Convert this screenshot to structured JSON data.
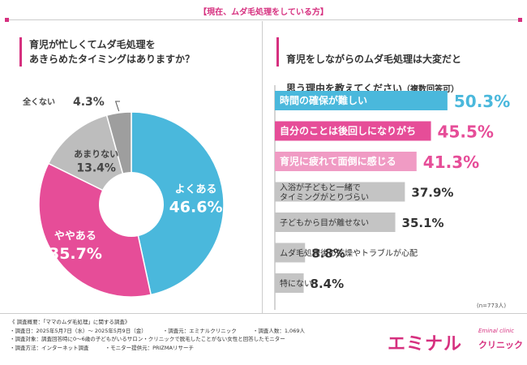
{
  "header": {
    "title": "【現在、ムダ毛処理をしている方】"
  },
  "left": {
    "question": "育児が忙しくてムダ毛処理を\nあきらめたタイミングはありますか？"
  },
  "right": {
    "question_line1": "育児をしながらのムダ毛処理は大変だと",
    "question_line2": "思う理由を教えてください",
    "question_suffix": "（複数回答可）",
    "n_note": "(n=773人)"
  },
  "chart_data": [
    {
      "type": "pie",
      "title": "育児が忙しくてムダ毛処理をあきらめたタイミングはありますか？",
      "slices": [
        {
          "label": "よくある",
          "value": 46.6,
          "value_text": "46.6%",
          "color": "#4ab8dc"
        },
        {
          "label": "ややある",
          "value": 35.7,
          "value_text": "35.7%",
          "color": "#e64d98"
        },
        {
          "label": "あまりない",
          "value": 13.4,
          "value_text": "13.4%",
          "color": "#bdbdbd"
        },
        {
          "label": "全くない",
          "value": 4.3,
          "value_text": "4.3%",
          "color": "#9e9e9e"
        }
      ]
    },
    {
      "type": "bar",
      "orientation": "horizontal",
      "title": "育児をしながらのムダ毛処理は大変だと思う理由を教えてください（複数回答可）",
      "xlim": [
        0,
        100
      ],
      "items": [
        {
          "label": "時間の確保が難しい",
          "value": 50.3,
          "value_text": "50.3%",
          "color": "#4ab8dc",
          "text_color": "#ffffff",
          "value_color": "#4ab8dc"
        },
        {
          "label": "自分のことは後回しになりがち",
          "value": 45.5,
          "value_text": "45.5%",
          "color": "#e64d98",
          "text_color": "#ffffff",
          "value_color": "#e64d98"
        },
        {
          "label": "育児に疲れて面倒に感じる",
          "value": 41.3,
          "value_text": "41.3%",
          "color": "#f09bc4",
          "text_color": "#ffffff",
          "value_color": "#e64d98"
        },
        {
          "label": "入浴が子どもと一緒で\nタイミングがとりづらい",
          "value": 37.9,
          "value_text": "37.9%",
          "color": "#c4c4c4",
          "text_color": "#333333",
          "value_color": "#333333"
        },
        {
          "label": "子どもから目が離せない",
          "value": 35.1,
          "value_text": "35.1%",
          "color": "#c4c4c4",
          "text_color": "#333333",
          "value_color": "#333333"
        },
        {
          "label": "ムダ毛処理後の乾燥やトラブルが心配",
          "value": 8.8,
          "value_text": "8.8%",
          "color": "#c4c4c4",
          "text_color": "#333333",
          "value_color": "#333333"
        },
        {
          "label": "特にない",
          "value": 8.4,
          "value_text": "8.4%",
          "color": "#c4c4c4",
          "text_color": "#333333",
          "value_color": "#333333"
        }
      ]
    }
  ],
  "survey": {
    "heading": "《 調査概要：「ママのムダ毛処理」に関する調査》",
    "date": "・調査日：2025年5月7日（水）～ 2025年5月9日（金）",
    "org": "・調査元：エミナルクリニック",
    "count": "・調査人数：1,069人",
    "target": "・調査対象：調査回答時に0～6歳の子どもがいるサロン・クリニックで脱毛したことがない女性と回答したモニター",
    "method": "・調査方法：インターネット調査",
    "provider": "・モニター提供元：PRIZMAリサーチ"
  },
  "logo": {
    "main": "エミナル",
    "sub": "クリニック",
    "script": "Eminal clinic"
  }
}
